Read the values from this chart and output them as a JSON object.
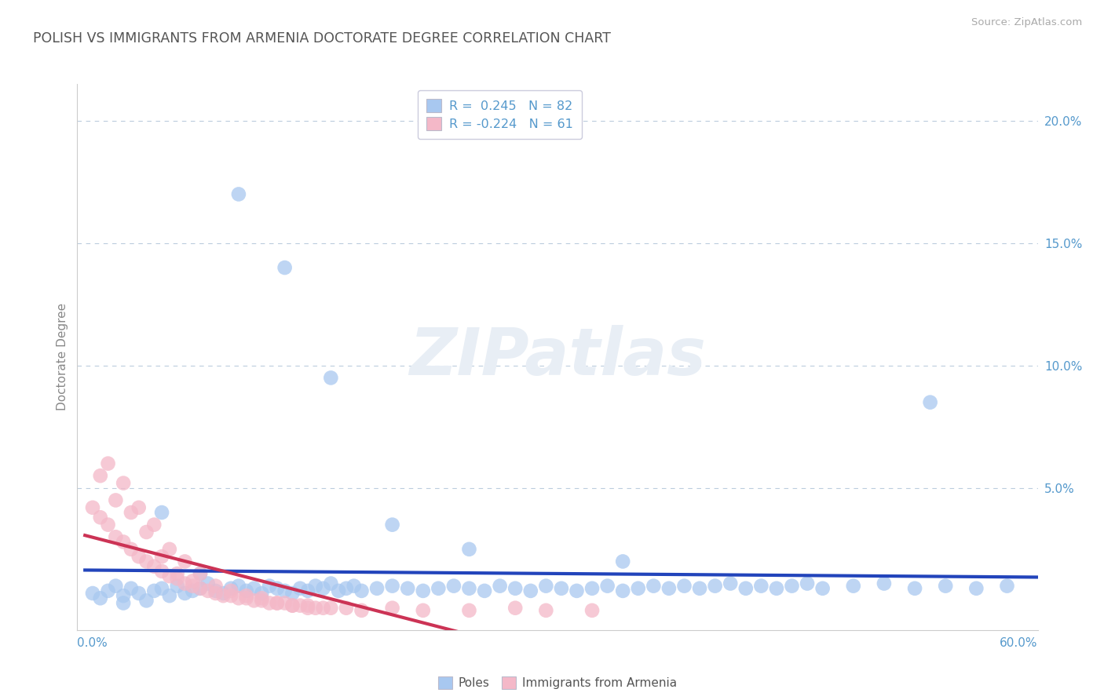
{
  "title": "POLISH VS IMMIGRANTS FROM ARMENIA DOCTORATE DEGREE CORRELATION CHART",
  "source": "Source: ZipAtlas.com",
  "ylabel": "Doctorate Degree",
  "xmin": -0.005,
  "xmax": 0.62,
  "ymin": -0.008,
  "ymax": 0.215,
  "legend_line1": "R =  0.245   N = 82",
  "legend_line2": "R = -0.224   N = 61",
  "blue_scatter": "#A8C8F0",
  "pink_scatter": "#F4B8C8",
  "blue_line": "#2244BB",
  "pink_line_solid": "#CC3355",
  "pink_line_dash": "#DD6688",
  "axis_label_color": "#5599CC",
  "title_color": "#555555",
  "watermark_color": "#E8EEF5",
  "grid_color": "#BBCCDD",
  "poles_x": [
    0.005,
    0.01,
    0.015,
    0.02,
    0.025,
    0.03,
    0.035,
    0.04,
    0.045,
    0.05,
    0.055,
    0.06,
    0.065,
    0.07,
    0.075,
    0.08,
    0.085,
    0.09,
    0.095,
    0.1,
    0.105,
    0.11,
    0.115,
    0.12,
    0.125,
    0.13,
    0.135,
    0.14,
    0.145,
    0.15,
    0.155,
    0.16,
    0.165,
    0.17,
    0.175,
    0.18,
    0.19,
    0.2,
    0.21,
    0.22,
    0.23,
    0.24,
    0.25,
    0.26,
    0.27,
    0.28,
    0.29,
    0.3,
    0.31,
    0.32,
    0.33,
    0.34,
    0.35,
    0.36,
    0.37,
    0.38,
    0.39,
    0.4,
    0.41,
    0.42,
    0.43,
    0.44,
    0.45,
    0.46,
    0.47,
    0.48,
    0.5,
    0.52,
    0.54,
    0.56,
    0.58,
    0.6,
    0.025,
    0.05,
    0.075,
    0.1,
    0.13,
    0.16,
    0.2,
    0.25,
    0.35,
    0.55
  ],
  "poles_y": [
    0.007,
    0.005,
    0.008,
    0.01,
    0.006,
    0.009,
    0.007,
    0.004,
    0.008,
    0.009,
    0.006,
    0.01,
    0.007,
    0.008,
    0.009,
    0.011,
    0.008,
    0.007,
    0.009,
    0.01,
    0.008,
    0.009,
    0.007,
    0.01,
    0.009,
    0.008,
    0.007,
    0.009,
    0.008,
    0.01,
    0.009,
    0.011,
    0.008,
    0.009,
    0.01,
    0.008,
    0.009,
    0.01,
    0.009,
    0.008,
    0.009,
    0.01,
    0.009,
    0.008,
    0.01,
    0.009,
    0.008,
    0.01,
    0.009,
    0.008,
    0.009,
    0.01,
    0.008,
    0.009,
    0.01,
    0.009,
    0.01,
    0.009,
    0.01,
    0.011,
    0.009,
    0.01,
    0.009,
    0.01,
    0.011,
    0.009,
    0.01,
    0.011,
    0.009,
    0.01,
    0.009,
    0.01,
    0.003,
    0.04,
    0.015,
    0.17,
    0.14,
    0.095,
    0.035,
    0.025,
    0.02,
    0.085
  ],
  "armenia_x": [
    0.005,
    0.01,
    0.015,
    0.02,
    0.025,
    0.03,
    0.035,
    0.04,
    0.045,
    0.05,
    0.055,
    0.06,
    0.065,
    0.07,
    0.075,
    0.08,
    0.085,
    0.09,
    0.095,
    0.1,
    0.105,
    0.11,
    0.115,
    0.12,
    0.125,
    0.13,
    0.135,
    0.14,
    0.145,
    0.15,
    0.155,
    0.16,
    0.17,
    0.18,
    0.2,
    0.22,
    0.25,
    0.28,
    0.3,
    0.33,
    0.01,
    0.02,
    0.03,
    0.04,
    0.05,
    0.06,
    0.07,
    0.015,
    0.025,
    0.035,
    0.045,
    0.055,
    0.065,
    0.075,
    0.085,
    0.095,
    0.105,
    0.115,
    0.125,
    0.135,
    0.145
  ],
  "armenia_y": [
    0.042,
    0.038,
    0.035,
    0.03,
    0.028,
    0.025,
    0.022,
    0.02,
    0.018,
    0.016,
    0.014,
    0.013,
    0.011,
    0.01,
    0.009,
    0.008,
    0.007,
    0.006,
    0.006,
    0.005,
    0.005,
    0.004,
    0.004,
    0.003,
    0.003,
    0.003,
    0.002,
    0.002,
    0.002,
    0.001,
    0.001,
    0.001,
    0.001,
    0.0,
    0.001,
    0.0,
    0.0,
    0.001,
    0.0,
    0.0,
    0.055,
    0.045,
    0.04,
    0.032,
    0.022,
    0.015,
    0.012,
    0.06,
    0.052,
    0.042,
    0.035,
    0.025,
    0.02,
    0.015,
    0.01,
    0.008,
    0.006,
    0.005,
    0.003,
    0.002,
    0.001
  ]
}
